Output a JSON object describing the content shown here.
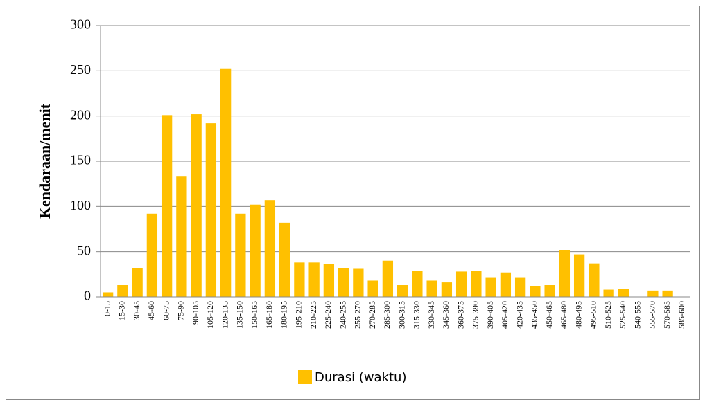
{
  "chart_data": {
    "type": "bar",
    "y_label": "Kendaraan/menit",
    "categories": [
      "0-15",
      "15-30",
      "30-45",
      "45-60",
      "60-75",
      "75-90",
      "90-105",
      "105-120",
      "120-135",
      "135-150",
      "150-165",
      "165-180",
      "180-195",
      "195-210",
      "210-225",
      "225-240",
      "240-255",
      "255-270",
      "270-285",
      "285-300",
      "300-315",
      "315-330",
      "330-345",
      "345-360",
      "360-375",
      "375-390",
      "390-405",
      "405-420",
      "420-435",
      "435-450",
      "450-465",
      "465-480",
      "480-495",
      "495-510",
      "510-525",
      "525-540",
      "540-555",
      "555-570",
      "570-585",
      "585-600"
    ],
    "series": [
      {
        "name": "Durasi (waktu)",
        "color": "#ffc000",
        "values": [
          5,
          13,
          32,
          92,
          201,
          133,
          202,
          192,
          252,
          92,
          102,
          107,
          82,
          38,
          38,
          36,
          32,
          31,
          18,
          40,
          13,
          29,
          18,
          16,
          28,
          29,
          21,
          27,
          21,
          12,
          13,
          52,
          47,
          37,
          8,
          9,
          0,
          7,
          7,
          0
        ]
      }
    ],
    "ylim": [
      0,
      300
    ],
    "yticks": [
      0,
      50,
      100,
      150,
      200,
      250,
      300
    ],
    "grid": true,
    "legend": "bottom"
  }
}
